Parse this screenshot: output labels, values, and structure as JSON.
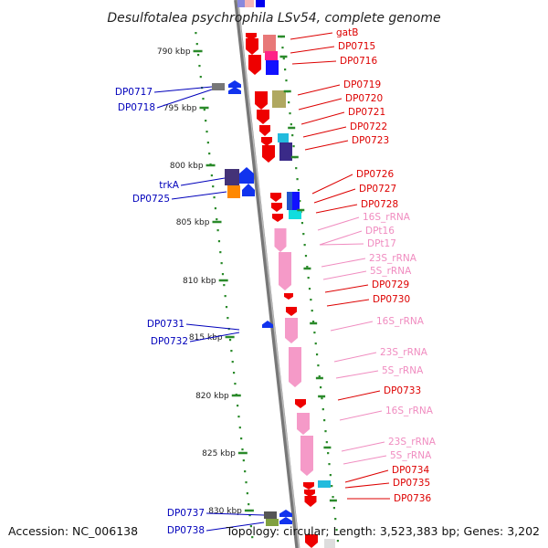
{
  "title": "Desulfotalea psychrophila LSv54, complete genome",
  "accession": "Accession: NC_006138",
  "topology": "Topology: circular; Length: 3,523,383 bp; Genes: 3,202",
  "colors": {
    "forward_label": "#dd0000",
    "reverse_label": "#0000bb",
    "rna_label": "#f08cc0",
    "axis_tick": "#2a8a2a",
    "backbone": "#8a8a8a"
  },
  "ruler": [
    {
      "label": "790 kbp",
      "kbp": 790
    },
    {
      "label": "795 kbp",
      "kbp": 795
    },
    {
      "label": "800 kbp",
      "kbp": 800
    },
    {
      "label": "805 kbp",
      "kbp": 805
    },
    {
      "label": "810 kbp",
      "kbp": 810
    },
    {
      "label": "815 kbp",
      "kbp": 815
    },
    {
      "label": "820 kbp",
      "kbp": 820
    },
    {
      "label": "825 kbp",
      "kbp": 825
    },
    {
      "label": "830 kbp",
      "kbp": 830
    }
  ],
  "genes_right": [
    {
      "label": "gatB",
      "kind": "cds"
    },
    {
      "label": "DP0715",
      "kind": "cds"
    },
    {
      "label": "DP0716",
      "kind": "cds"
    },
    {
      "label": "DP0719",
      "kind": "cds"
    },
    {
      "label": "DP0720",
      "kind": "cds"
    },
    {
      "label": "DP0721",
      "kind": "cds"
    },
    {
      "label": "DP0722",
      "kind": "cds"
    },
    {
      "label": "DP0723",
      "kind": "cds"
    },
    {
      "label": "DP0726",
      "kind": "cds"
    },
    {
      "label": "DP0727",
      "kind": "cds"
    },
    {
      "label": "DP0728",
      "kind": "cds"
    },
    {
      "label": "16S_rRNA",
      "kind": "rna"
    },
    {
      "label": "DPt16",
      "kind": "rna"
    },
    {
      "label": "DPt17",
      "kind": "rna"
    },
    {
      "label": "23S_rRNA",
      "kind": "rna"
    },
    {
      "label": "5S_rRNA",
      "kind": "rna"
    },
    {
      "label": "DP0729",
      "kind": "cds"
    },
    {
      "label": "DP0730",
      "kind": "cds"
    },
    {
      "label": "16S_rRNA",
      "kind": "rna"
    },
    {
      "label": "23S_rRNA",
      "kind": "rna"
    },
    {
      "label": "5S_rRNA",
      "kind": "rna"
    },
    {
      "label": "DP0733",
      "kind": "cds"
    },
    {
      "label": "16S_rRNA",
      "kind": "rna"
    },
    {
      "label": "23S_rRNA",
      "kind": "rna"
    },
    {
      "label": "5S_rRNA",
      "kind": "rna"
    },
    {
      "label": "DP0734",
      "kind": "cds"
    },
    {
      "label": "DP0735",
      "kind": "cds"
    },
    {
      "label": "DP0736",
      "kind": "cds"
    }
  ],
  "genes_left": [
    {
      "label": "DP0717"
    },
    {
      "label": "DP0718"
    },
    {
      "label": "trkA"
    },
    {
      "label": "DP0725"
    },
    {
      "label": "DP0731"
    },
    {
      "label": "DP0732"
    },
    {
      "label": "DP0737"
    },
    {
      "label": "DP0738"
    }
  ]
}
